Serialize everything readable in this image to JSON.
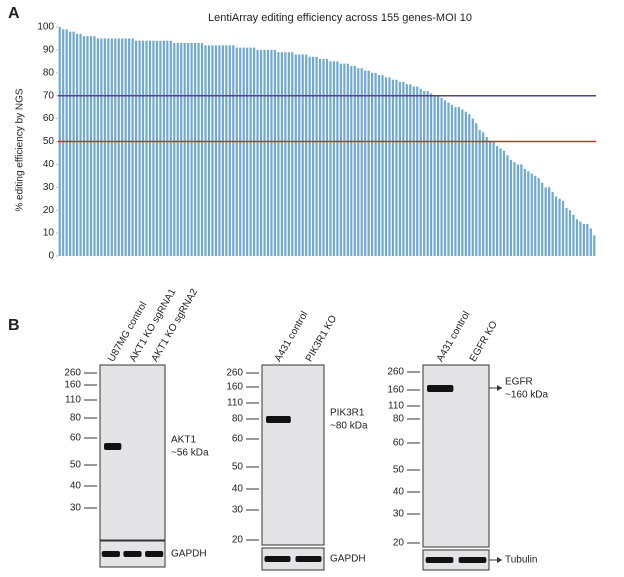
{
  "chart_data": {
    "type": "bar",
    "panel": "A",
    "title": "LentiArray editing efficiency across 155 genes-MOI 10",
    "y_label": "% editing efficiency by NGS",
    "color": "#6fa8d0",
    "ylim": [
      0,
      100
    ],
    "yticks": [
      0,
      10,
      20,
      30,
      40,
      50,
      60,
      70,
      80,
      90,
      100
    ],
    "hlines": [
      {
        "value": 70,
        "color": "#5b3e8f"
      },
      {
        "value": 50,
        "color": "#d62b2b"
      }
    ],
    "values": [
      100,
      99,
      99,
      98,
      98,
      97,
      97,
      96,
      96,
      96,
      96,
      95,
      95,
      95,
      95,
      95,
      95,
      95,
      95,
      95,
      95,
      95,
      94,
      94,
      94,
      94,
      94,
      94,
      94,
      94,
      94,
      94,
      94,
      93,
      93,
      93,
      93,
      93,
      93,
      93,
      93,
      93,
      92,
      92,
      92,
      92,
      92,
      92,
      92,
      92,
      92,
      91,
      91,
      91,
      91,
      91,
      91,
      90,
      90,
      90,
      90,
      90,
      90,
      89,
      89,
      89,
      89,
      89,
      88,
      88,
      88,
      88,
      87,
      87,
      87,
      86,
      86,
      86,
      85,
      85,
      85,
      84,
      84,
      84,
      83,
      83,
      82,
      82,
      81,
      81,
      80,
      80,
      79,
      79,
      78,
      78,
      77,
      77,
      76,
      76,
      75,
      75,
      74,
      74,
      73,
      72,
      72,
      71,
      70,
      70,
      69,
      68,
      67,
      66,
      65,
      65,
      64,
      63,
      62,
      60,
      58,
      55,
      54,
      52,
      50,
      50,
      48,
      47,
      46,
      44,
      42,
      41,
      40,
      40,
      38,
      37,
      36,
      35,
      34,
      32,
      30,
      30,
      28,
      26,
      25,
      24,
      21,
      20,
      18,
      16,
      15,
      14,
      14,
      12,
      9
    ]
  },
  "panel_b": {
    "panel": "B",
    "blots": [
      {
        "lanes": [
          "U87MG control",
          "AKT1 KO sgRNA1",
          "AKT1 KO sgRNA2"
        ],
        "markers": [
          "260",
          "160",
          "110",
          "80",
          "60",
          "50",
          "40",
          "30"
        ],
        "target": "AKT1",
        "size": "~56 kDa",
        "loading": "GAPDH"
      },
      {
        "lanes": [
          "A431 control",
          "PIK3R1 KO"
        ],
        "markers": [
          "260",
          "160",
          "110",
          "80",
          "60",
          "50",
          "40",
          "30",
          "20"
        ],
        "target": "PIK3R1",
        "size": "~80 kDa",
        "loading": "GAPDH"
      },
      {
        "lanes": [
          "A431 control",
          "EGFR KO"
        ],
        "markers": [
          "260",
          "160",
          "110",
          "80",
          "60",
          "50",
          "40",
          "30",
          "20"
        ],
        "target": "EGFR",
        "size": "~160 kDa",
        "loading": "Tubulin"
      }
    ]
  }
}
